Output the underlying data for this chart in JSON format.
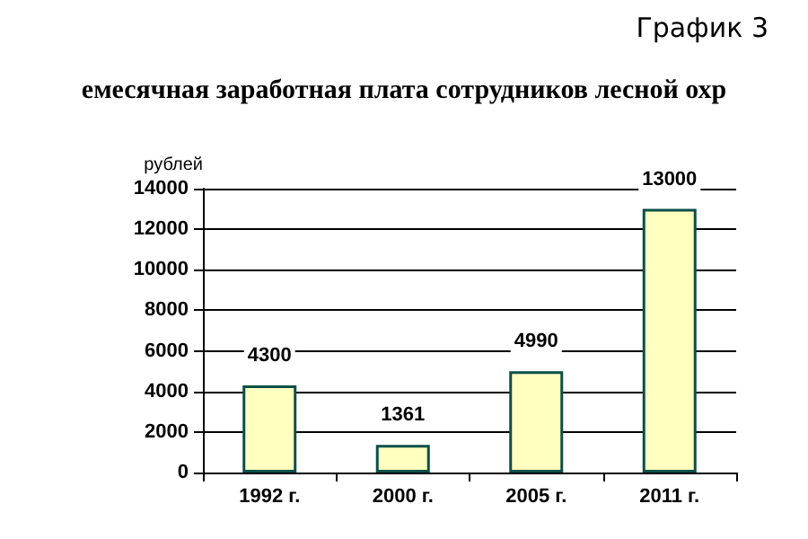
{
  "chart_data": {
    "type": "bar",
    "title": "емесячная заработная плата сотрудников лесной охр",
    "ylabel": "рублей",
    "annotations": [
      "График 3"
    ],
    "categories": [
      "1992 г.",
      "2000 г.",
      "2005 г.",
      "2011 г."
    ],
    "values": [
      4300,
      1361,
      4990,
      13000
    ],
    "color": "#ffffc0",
    "ylim": [
      0,
      14000
    ],
    "yticks": [
      0,
      2000,
      4000,
      6000,
      8000,
      10000,
      12000,
      14000
    ],
    "grid": "y",
    "data_labels": true
  }
}
